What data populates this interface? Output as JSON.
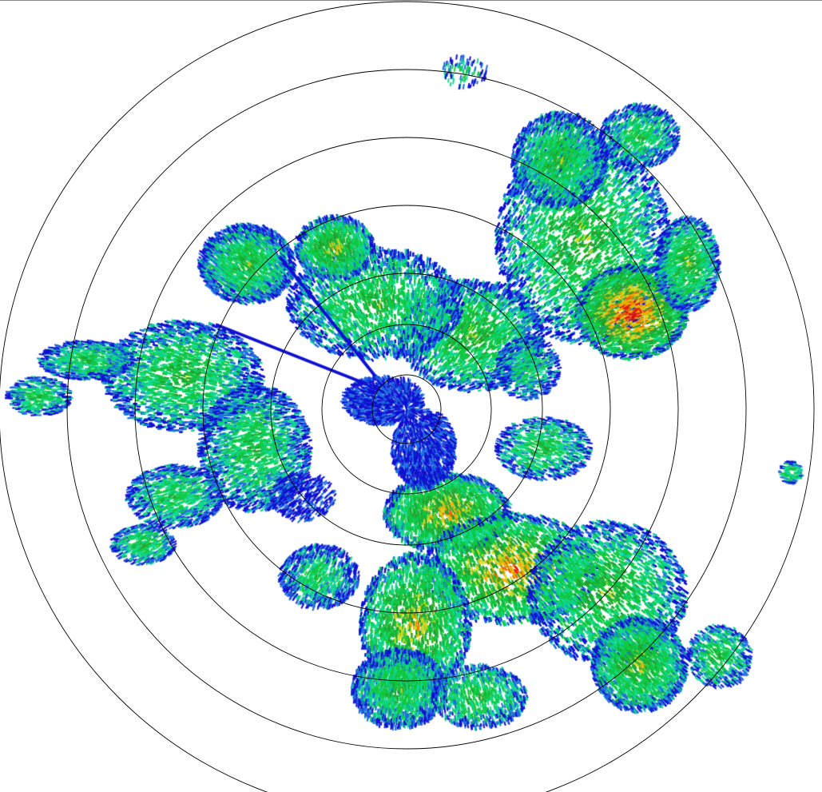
{
  "display": {
    "type": "radar-ppi",
    "background_color": "#ffffff",
    "ring_color": "#000000",
    "range_ring_count": 7
  },
  "reflectivity_palette": [
    "#1010d0",
    "#1f6fe0",
    "#10d890",
    "#10c840",
    "#22a030",
    "#d8d820",
    "#f0b000",
    "#f06000",
    "#e01010",
    "#d020d0"
  ]
}
